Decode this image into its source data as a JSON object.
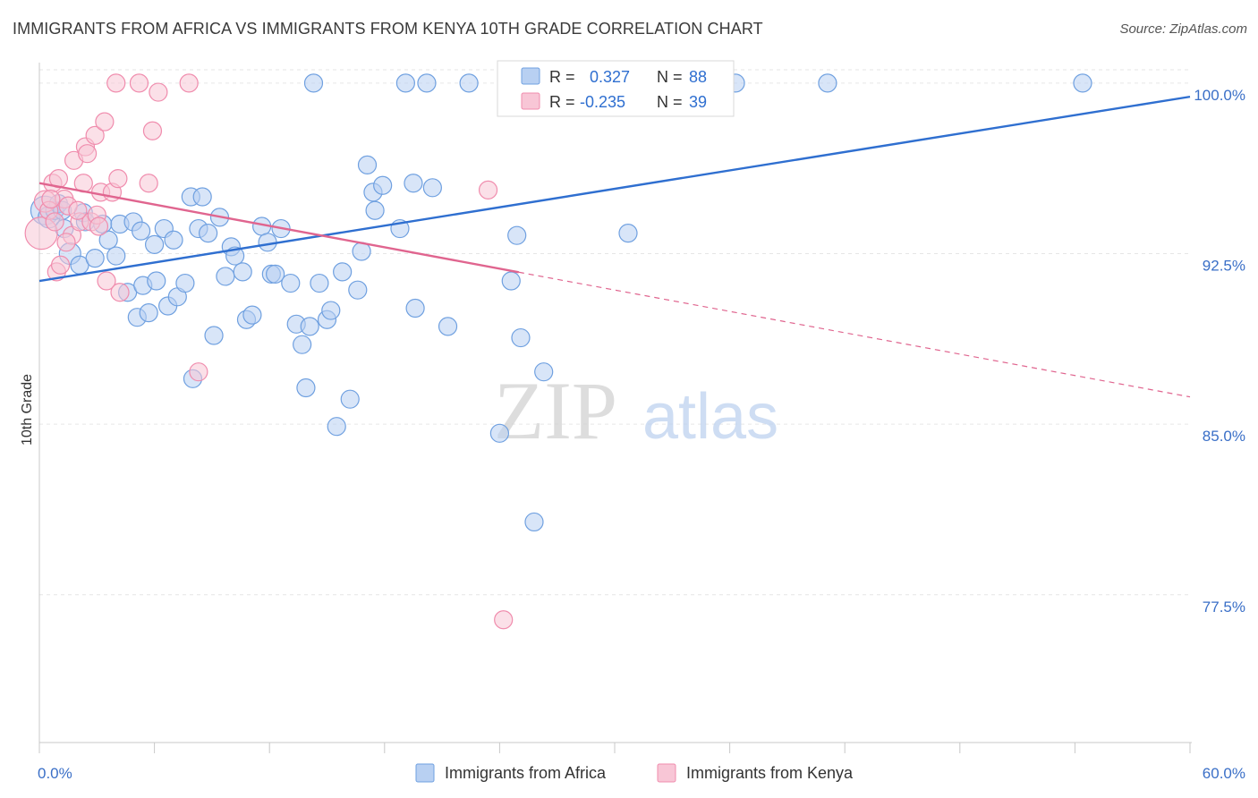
{
  "chart_data": {
    "type": "scatter",
    "title": "IMMIGRANTS FROM AFRICA VS IMMIGRANTS FROM KENYA 10TH GRADE CORRELATION CHART",
    "source": "Source: ZipAtlas.com",
    "xlabel": "",
    "ylabel": "10th Grade",
    "xlim": [
      0,
      60
    ],
    "ylim": [
      71.0,
      100.9
    ],
    "x_tick_labels": [
      "0.0%",
      "60.0%"
    ],
    "y_ticks": [
      {
        "value": 100.0,
        "label": "100.0%"
      },
      {
        "value": 92.5,
        "label": "92.5%"
      },
      {
        "value": 85.0,
        "label": "85.0%"
      },
      {
        "value": 77.5,
        "label": "77.5%"
      }
    ],
    "grid": true,
    "watermark": {
      "part1": "ZIP",
      "part2": "atlas"
    },
    "legend_stats": [
      {
        "r_label": "R = ",
        "r_value": "0.327",
        "n_label": "N = ",
        "n_value": "88"
      },
      {
        "r_label": "R = ",
        "r_value": "-0.235",
        "n_label": "N = ",
        "n_value": "39"
      }
    ],
    "series": [
      {
        "name": "Immigrants from Africa",
        "color": "#6fa0e0",
        "fill": "#b8d0f2",
        "line_color": "#2f6fd0",
        "trend": {
          "x0": 0,
          "y0": 91.3,
          "x1": 60,
          "y1": 99.4,
          "solid_to": 60
        },
        "points": [
          [
            0.3,
            94.4,
            16
          ],
          [
            0.5,
            94.1,
            12
          ],
          [
            0.8,
            94.4,
            10
          ],
          [
            1.0,
            94.7,
            10
          ],
          [
            1.2,
            94.4,
            10
          ],
          [
            1.3,
            93.6,
            10
          ],
          [
            1.6,
            92.5,
            12
          ],
          [
            2.1,
            92.0,
            10
          ],
          [
            2.3,
            94.3,
            10
          ],
          [
            2.4,
            93.9,
            10
          ],
          [
            2.9,
            92.3,
            10
          ],
          [
            3.3,
            93.8,
            10
          ],
          [
            3.6,
            93.1,
            10
          ],
          [
            4.0,
            92.4,
            10
          ],
          [
            4.2,
            93.8,
            10
          ],
          [
            4.6,
            90.8,
            10
          ],
          [
            4.9,
            93.9,
            10
          ],
          [
            5.1,
            89.7,
            10
          ],
          [
            5.3,
            93.5,
            10
          ],
          [
            5.4,
            91.1,
            10
          ],
          [
            5.7,
            89.9,
            10
          ],
          [
            6.0,
            92.9,
            10
          ],
          [
            6.1,
            91.3,
            10
          ],
          [
            6.5,
            93.6,
            10
          ],
          [
            6.7,
            90.2,
            10
          ],
          [
            7.0,
            93.1,
            10
          ],
          [
            7.2,
            90.6,
            10
          ],
          [
            7.6,
            91.2,
            10
          ],
          [
            7.9,
            95.0,
            10
          ],
          [
            8.0,
            87.0,
            10
          ],
          [
            8.5,
            95.0,
            10
          ],
          [
            8.3,
            93.6,
            10
          ],
          [
            8.8,
            93.4,
            10
          ],
          [
            9.1,
            88.9,
            10
          ],
          [
            9.4,
            94.1,
            10
          ],
          [
            9.7,
            91.5,
            10
          ],
          [
            10.0,
            92.8,
            10
          ],
          [
            10.2,
            92.4,
            10
          ],
          [
            10.6,
            91.7,
            10
          ],
          [
            10.8,
            89.6,
            10
          ],
          [
            11.1,
            89.8,
            10
          ],
          [
            11.6,
            93.7,
            10
          ],
          [
            11.9,
            93.0,
            10
          ],
          [
            12.1,
            91.6,
            10
          ],
          [
            12.3,
            91.6,
            10
          ],
          [
            12.6,
            93.6,
            10
          ],
          [
            13.1,
            91.2,
            10
          ],
          [
            13.4,
            89.4,
            10
          ],
          [
            13.7,
            88.5,
            10
          ],
          [
            13.9,
            86.6,
            10
          ],
          [
            14.1,
            89.3,
            10
          ],
          [
            14.3,
            100.0,
            10
          ],
          [
            14.6,
            91.2,
            10
          ],
          [
            15.0,
            89.6,
            10
          ],
          [
            15.2,
            90.0,
            10
          ],
          [
            15.5,
            84.9,
            10
          ],
          [
            15.8,
            91.7,
            10
          ],
          [
            16.2,
            86.1,
            10
          ],
          [
            16.6,
            90.9,
            10
          ],
          [
            16.8,
            92.6,
            10
          ],
          [
            17.1,
            96.4,
            10
          ],
          [
            17.4,
            95.2,
            10
          ],
          [
            17.5,
            94.4,
            10
          ],
          [
            17.9,
            95.5,
            10
          ],
          [
            18.8,
            93.6,
            10
          ],
          [
            19.1,
            100.0,
            10
          ],
          [
            19.5,
            95.6,
            10
          ],
          [
            19.6,
            90.1,
            10
          ],
          [
            20.2,
            100.0,
            10
          ],
          [
            20.5,
            95.4,
            10
          ],
          [
            21.3,
            89.3,
            10
          ],
          [
            22.4,
            100.0,
            10
          ],
          [
            24.0,
            84.6,
            10
          ],
          [
            24.6,
            91.3,
            10
          ],
          [
            24.9,
            93.3,
            10
          ],
          [
            25.1,
            88.8,
            10
          ],
          [
            25.8,
            80.7,
            10
          ],
          [
            26.3,
            87.3,
            10
          ],
          [
            28.3,
            100.0,
            10
          ],
          [
            32.0,
            100.0,
            10
          ],
          [
            32.5,
            100.0,
            10
          ],
          [
            33.0,
            100.0,
            10
          ],
          [
            35.0,
            100.0,
            10
          ],
          [
            36.3,
            100.0,
            10
          ],
          [
            41.1,
            100.0,
            10
          ],
          [
            29.2,
            100.0,
            10
          ],
          [
            30.7,
            93.4,
            10
          ],
          [
            54.4,
            100.0,
            10
          ]
        ]
      },
      {
        "name": "Immigrants from Kenya",
        "color": "#f08cad",
        "fill": "#f8c6d6",
        "line_color": "#e0658f",
        "trend": {
          "x0": 0,
          "y0": 95.6,
          "x1": 60,
          "y1": 86.2,
          "solid_to": 25.0
        },
        "points": [
          [
            0.1,
            93.4,
            18
          ],
          [
            0.3,
            94.8,
            12
          ],
          [
            0.5,
            94.4,
            10
          ],
          [
            0.7,
            95.6,
            10
          ],
          [
            0.9,
            91.7,
            10
          ],
          [
            1.0,
            95.8,
            10
          ],
          [
            1.1,
            92.0,
            10
          ],
          [
            1.3,
            94.9,
            10
          ],
          [
            1.5,
            94.6,
            10
          ],
          [
            1.7,
            93.3,
            10
          ],
          [
            1.8,
            96.6,
            10
          ],
          [
            2.1,
            93.9,
            10
          ],
          [
            2.3,
            95.6,
            10
          ],
          [
            2.4,
            97.2,
            10
          ],
          [
            2.5,
            96.9,
            10
          ],
          [
            2.7,
            93.9,
            10
          ],
          [
            2.9,
            97.7,
            10
          ],
          [
            3.0,
            94.2,
            10
          ],
          [
            3.1,
            93.7,
            10
          ],
          [
            3.2,
            95.2,
            10
          ],
          [
            3.4,
            98.3,
            10
          ],
          [
            3.5,
            91.3,
            10
          ],
          [
            3.8,
            95.2,
            10
          ],
          [
            4.0,
            100.0,
            10
          ],
          [
            4.1,
            95.8,
            10
          ],
          [
            4.2,
            90.8,
            10
          ],
          [
            5.2,
            100.0,
            10
          ],
          [
            5.7,
            95.6,
            10
          ],
          [
            5.9,
            97.9,
            10
          ],
          [
            6.2,
            99.6,
            10
          ],
          [
            7.8,
            100.0,
            10
          ],
          [
            8.3,
            87.3,
            10
          ],
          [
            23.4,
            95.3,
            10
          ],
          [
            24.2,
            76.4,
            10
          ],
          [
            24.5,
            100.0,
            10
          ],
          [
            0.6,
            94.9,
            10
          ],
          [
            1.4,
            93.0,
            10
          ],
          [
            2.0,
            94.4,
            10
          ],
          [
            0.8,
            93.9,
            10
          ]
        ]
      }
    ]
  }
}
